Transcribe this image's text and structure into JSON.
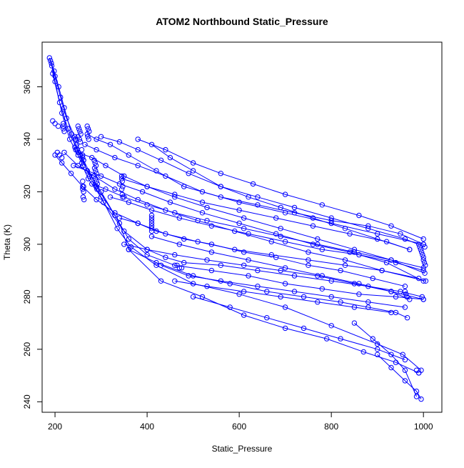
{
  "chart_data": {
    "type": "line",
    "title": "ATOM2 Northbound Static_Pressure",
    "xlabel": "Static_Pressure",
    "ylabel": "Theta (K)",
    "xlim": [
      172,
      1040
    ],
    "ylim": [
      236,
      377
    ],
    "xticks": [
      200,
      400,
      600,
      800,
      1000
    ],
    "yticks": [
      240,
      260,
      280,
      300,
      320,
      340,
      360
    ],
    "grid": false,
    "marker": "open-circle",
    "series_color": "#0000ff",
    "series": [
      {
        "x": [
          188,
          193,
          200,
          212,
          225,
          245,
          262,
          290,
          330,
          360,
          400,
          460,
          540,
          620,
          700,
          780,
          860,
          940,
          1000
        ],
        "y": [
          371,
          368,
          364,
          356,
          348,
          340,
          332,
          322,
          311,
          302,
          296,
          292,
          290,
          288,
          285,
          283,
          281,
          280,
          279
        ]
      },
      {
        "x": [
          190,
          198,
          208,
          220,
          236,
          255,
          275,
          305,
          350,
          400,
          440,
          480,
          560,
          640,
          720,
          800,
          880,
          950,
          997
        ],
        "y": [
          370,
          366,
          360,
          352,
          342,
          334,
          326,
          316,
          305,
          298,
          295,
          293,
          292,
          290,
          288,
          286,
          284,
          282,
          280
        ]
      },
      {
        "x": [
          192,
          200,
          215,
          232,
          250,
          272,
          300,
          335,
          365,
          420,
          500,
          600,
          700,
          800,
          900,
          955,
          995
        ],
        "y": [
          369,
          362,
          350,
          340,
          334,
          325,
          318,
          306,
          299,
          292,
          285,
          281,
          276,
          269,
          262,
          258,
          252
        ]
      },
      {
        "x": [
          195,
          210,
          228,
          248,
          270,
          300,
          340,
          360,
          430,
          520,
          610,
          700,
          790,
          870,
          940,
          990
        ],
        "y": [
          365,
          354,
          344,
          336,
          328,
          320,
          308,
          298,
          286,
          280,
          273,
          268,
          264,
          259,
          255,
          251
        ]
      },
      {
        "x": [
          270,
          290,
          320,
          360,
          420,
          480,
          560,
          640,
          720,
          800,
          880,
          950,
          1000
        ],
        "y": [
          342,
          340,
          338,
          334,
          328,
          322,
          318,
          315,
          312,
          309,
          307,
          304,
          300
        ]
      },
      {
        "x": [
          265,
          290,
          330,
          380,
          440,
          520,
          600,
          700,
          800,
          900,
          1000
        ],
        "y": [
          338,
          336,
          333,
          330,
          326,
          320,
          316,
          312,
          308,
          304,
          300
        ]
      },
      {
        "x": [
          300,
          340,
          380,
          430,
          490,
          560,
          640,
          720,
          800,
          880,
          960,
          1003
        ],
        "y": [
          341,
          339,
          336,
          332,
          327,
          322,
          318,
          314,
          310,
          306,
          302,
          299
        ]
      },
      {
        "x": [
          250,
          280,
          310,
          350,
          400,
          460,
          530,
          610,
          690,
          770,
          850,
          930,
          1003
        ],
        "y": [
          335,
          333,
          330,
          326,
          322,
          318,
          314,
          310,
          306,
          302,
          298,
          294,
          289
        ]
      },
      {
        "x": [
          240,
          270,
          300,
          340,
          390,
          450,
          520,
          600,
          680,
          760,
          840,
          920,
          1000
        ],
        "y": [
          330,
          328,
          326,
          323,
          320,
          316,
          312,
          308,
          304,
          300,
          297,
          293,
          286
        ]
      },
      {
        "x": [
          220,
          250,
          285,
          330,
          380,
          440,
          510,
          590,
          670,
          750,
          830,
          910,
          1005
        ],
        "y": [
          335,
          330,
          326,
          321,
          317,
          313,
          309,
          305,
          301,
          297,
          294,
          290,
          286
        ]
      },
      {
        "x": [
          280,
          310,
          350,
          400,
          460,
          530,
          610,
          690,
          770,
          850,
          930,
          1000
        ],
        "y": [
          323,
          321,
          318,
          315,
          312,
          309,
          306,
          303,
          300,
          297,
          294,
          291
        ]
      },
      {
        "x": [
          200,
          215,
          235,
          260,
          290,
          330,
          380,
          440,
          510,
          590,
          670,
          750,
          830,
          910,
          990
        ],
        "y": [
          334,
          331,
          327,
          322,
          317,
          312,
          308,
          304,
          301,
          298,
          296,
          294,
          292,
          290,
          287
        ]
      },
      {
        "x": [
          320,
          360,
          410,
          470,
          540,
          620,
          700,
          780,
          860,
          940,
          1000
        ],
        "y": [
          318,
          316,
          313,
          310,
          307,
          304,
          301,
          298,
          296,
          293,
          290
        ]
      },
      {
        "x": [
          340,
          380,
          420,
          480,
          540,
          610,
          680,
          750,
          820,
          890,
          960
        ],
        "y": [
          310,
          308,
          305,
          302,
          300,
          297,
          295,
          292,
          290,
          287,
          284
        ]
      },
      {
        "x": [
          350,
          400,
          460,
          530,
          610,
          690,
          770,
          850,
          930,
          970
        ],
        "y": [
          300,
          298,
          296,
          294,
          292,
          290,
          288,
          285,
          282,
          279
        ]
      },
      {
        "x": [
          360,
          420,
          500,
          580,
          660,
          740,
          820,
          880,
          940,
          965
        ],
        "y": [
          298,
          293,
          288,
          285,
          282,
          280,
          278,
          276,
          274,
          272
        ]
      },
      {
        "x": [
          410,
          470,
          540,
          620,
          700,
          780,
          860,
          930,
          1000
        ],
        "y": [
          303,
          300,
          297,
          294,
          291,
          288,
          285,
          282,
          279
        ]
      },
      {
        "x": [
          345,
          400,
          460,
          520,
          600,
          680,
          760,
          840,
          920,
          970
        ],
        "y": [
          325,
          322,
          319,
          316,
          313,
          310,
          307,
          304,
          301,
          298
        ]
      },
      {
        "x": [
          380,
          440,
          500,
          560,
          630,
          700,
          780,
          860,
          930,
          1000
        ],
        "y": [
          340,
          336,
          331,
          327,
          323,
          319,
          315,
          311,
          307,
          302
        ]
      },
      {
        "x": [
          410,
          450,
          500,
          560,
          620,
          690,
          760,
          830,
          900,
          970
        ],
        "y": [
          338,
          333,
          328,
          322,
          318,
          314,
          310,
          306,
          302,
          298
        ]
      },
      {
        "x": [
          430,
          490,
          560,
          640,
          720,
          800,
          880,
          960
        ],
        "y": [
          292,
          288,
          286,
          284,
          282,
          280,
          278,
          276
        ]
      },
      {
        "x": [
          460,
          530,
          610,
          690,
          770,
          850,
          930
        ],
        "y": [
          286,
          284,
          282,
          280,
          278,
          276,
          274
        ]
      },
      {
        "x": [
          500,
          580,
          660,
          740,
          820,
          900,
          960
        ],
        "y": [
          280,
          276,
          272,
          268,
          264,
          260,
          256
        ]
      },
      {
        "x": [
          850,
          890,
          930,
          960,
          985
        ],
        "y": [
          270,
          264,
          258,
          252,
          242
        ]
      },
      {
        "x": [
          900,
          930,
          960,
          985,
          995
        ],
        "y": [
          258,
          253,
          248,
          244,
          241
        ]
      }
    ],
    "point_clusters": [
      {
        "x": [
          195,
          200,
          207
        ],
        "y": [
          347,
          346,
          345
        ]
      },
      {
        "x": [
          205,
          210,
          215
        ],
        "y": [
          335,
          334,
          333
        ]
      },
      {
        "x": [
          218,
          218,
          218,
          220
        ],
        "y": [
          346,
          345,
          344,
          343
        ]
      },
      {
        "x": [
          243,
          245,
          247,
          243,
          245
        ],
        "y": [
          341,
          340,
          338,
          337,
          336
        ]
      },
      {
        "x": [
          250,
          252,
          254,
          256,
          250,
          253,
          255
        ],
        "y": [
          345,
          344,
          343,
          342,
          341,
          340,
          339
        ]
      },
      {
        "x": [
          258,
          260,
          260,
          262,
          258,
          261
        ],
        "y": [
          336,
          334,
          333,
          332,
          331,
          330
        ]
      },
      {
        "x": [
          260,
          262,
          260,
          262,
          261,
          263
        ],
        "y": [
          324,
          322,
          321,
          320,
          318,
          317
        ]
      },
      {
        "x": [
          270,
          272,
          274,
          271,
          273
        ],
        "y": [
          345,
          344,
          343,
          341,
          340
        ]
      },
      {
        "x": [
          285,
          287,
          289,
          286,
          288,
          290
        ],
        "y": [
          332,
          331,
          330,
          329,
          328,
          327
        ]
      },
      {
        "x": [
          288,
          290,
          292,
          289,
          291
        ],
        "y": [
          325,
          324,
          323,
          322,
          321
        ]
      },
      {
        "x": [
          345,
          346,
          347,
          345,
          346,
          347
        ],
        "y": [
          326,
          324,
          322,
          321,
          319,
          318
        ]
      },
      {
        "x": [
          410,
          410,
          410,
          410,
          410,
          410,
          410
        ],
        "y": [
          311,
          310,
          309,
          308,
          307,
          306,
          305
        ]
      },
      {
        "x": [
          465,
          470,
          475
        ],
        "y": [
          292,
          291,
          291
        ]
      },
      {
        "x": [
          990,
          992,
          994,
          996,
          998,
          1000
        ],
        "y": [
          300,
          299,
          298,
          297,
          296,
          295
        ]
      },
      {
        "x": [
          1000,
          1002,
          1004
        ],
        "y": [
          294,
          293,
          292
        ]
      },
      {
        "x": [
          960,
          962,
          964
        ],
        "y": [
          282,
          281,
          280
        ]
      },
      {
        "x": [
          985,
          990
        ],
        "y": [
          252,
          251
        ]
      }
    ]
  }
}
